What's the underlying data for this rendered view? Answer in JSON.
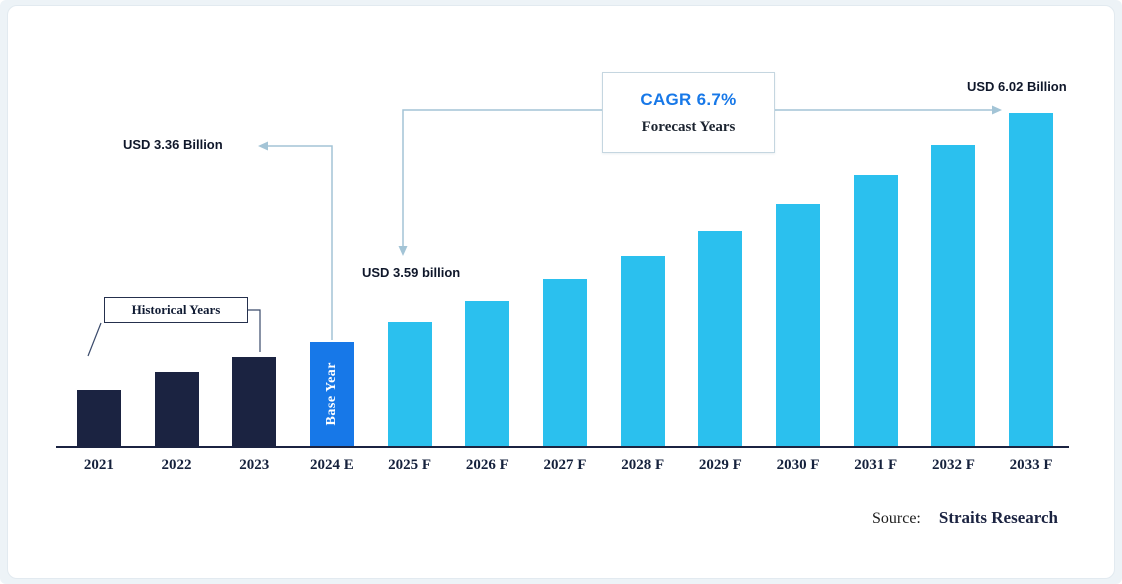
{
  "chart_data": {
    "type": "bar",
    "title": "",
    "unit": "USD Billion",
    "categories": [
      "2021",
      "2022",
      "2023",
      "2024 E",
      "2025 F",
      "2026 F",
      "2027 F",
      "2028 F",
      "2029 F",
      "2030 F",
      "2031 F",
      "2032 F",
      "2033 F"
    ],
    "values": [
      2.8,
      3.01,
      3.19,
      3.36,
      3.59,
      3.83,
      4.09,
      4.36,
      4.65,
      4.96,
      5.3,
      5.65,
      6.02
    ],
    "bar_roles": [
      "historical",
      "historical",
      "historical",
      "base",
      "forecast",
      "forecast",
      "forecast",
      "forecast",
      "forecast",
      "forecast",
      "forecast",
      "forecast",
      "forecast"
    ],
    "ylim_visual": [
      2.15,
      6.8
    ],
    "grid": false,
    "legend": "none",
    "axis_note": "y-axis not shown; bars truncated (not zero-based)",
    "annotations": {
      "historical_years": "Historical Years",
      "base_year": "Base Year",
      "value_label_2024": "USD 3.36 Billion",
      "value_label_2025": "USD 3.59 billion",
      "value_label_2033": "USD 6.02 Billion",
      "cagr": "CAGR 6.7%",
      "forecast_years": "Forecast Years"
    },
    "colors": {
      "historical": "#1b2341",
      "base": "#1778e8",
      "forecast": "#2bc0ee",
      "baseline": "#1b2341",
      "arrow": "#a3c4d6",
      "accent_blue": "#1778e8"
    }
  },
  "source": {
    "label": "Source:",
    "name": "Straits Research"
  }
}
